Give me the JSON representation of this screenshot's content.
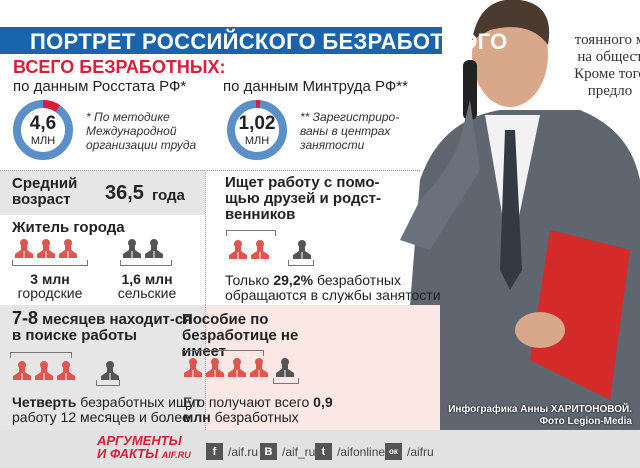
{
  "background_text": [
    "тоянного м",
    "на общест",
    "Кроме того",
    "предло"
  ],
  "title": "ПОРТРЕТ РОССИЙСКОГО БЕЗРАБОТНОГО",
  "total": {
    "heading": "ВСЕГО БЕЗРАБОТНЫХ:",
    "rosstat": {
      "label": "по данным Росстата РФ*",
      "value": "4,6",
      "unit": "МЛН",
      "note": "* По методике Международной организации труда"
    },
    "mintrud": {
      "label": "по данным Минтруда РФ**",
      "value": "1,02",
      "unit": "МЛН",
      "note": "** Зарегистриро-ваны в центрах занятости"
    }
  },
  "age": {
    "label": "Средний возраст",
    "value": "36,5",
    "unit": "года"
  },
  "city": {
    "heading": "Житель города",
    "urban_value": "3 млн",
    "urban_label": "городские",
    "rural_value": "1,6 млн",
    "rural_label": "сельские",
    "urban_icons": 3,
    "rural_icons": 2
  },
  "friends": {
    "heading": "Ищет работу с помо-щью друзей и родст-венников",
    "text_pre": "Только ",
    "text_bold": "29,2%",
    "text_post": " безработных обращаются в службы занятости",
    "red_icons": 2,
    "gray_icons": 1
  },
  "search": {
    "heading_bold": "7-8",
    "heading_rest": " месяцев находит-ся в поиске работы",
    "text_bold": "Четверть",
    "text_rest": " безработных ищут работу 12 месяцев и более",
    "red_icons": 3,
    "gray_icons": 1
  },
  "benefit": {
    "heading": "Пособие по безработице не имеет",
    "text_pre": "Его получают всего ",
    "text_bold": "0,9 млн",
    "text_post": " безработных",
    "red_icons": 4,
    "gray_icons": 1
  },
  "credits": {
    "line1": "Инфографика Анны ХАРИТОНОВОЙ.",
    "line2": "Фото Legion-Media"
  },
  "footer": {
    "logo_line1": "АРГУМЕНТЫ",
    "logo_line2": "И ФАКТЫ",
    "logo_site": "AIF.RU",
    "social": [
      {
        "icon": "facebook-icon",
        "glyph": "f",
        "handle": "/aif.ru"
      },
      {
        "icon": "vk-icon",
        "glyph": "В",
        "handle": "/aif_ru"
      },
      {
        "icon": "twitter-icon",
        "glyph": "t",
        "handle": "/aifonline"
      },
      {
        "icon": "odnoklassniki-icon",
        "glyph": "ок",
        "handle": "/aifru"
      }
    ]
  },
  "colors": {
    "blue": "#1a64ad",
    "red": "#d91f3a",
    "icon_red": "#e0554d",
    "icon_gray": "#555555",
    "ring": "#5b8fc9"
  }
}
